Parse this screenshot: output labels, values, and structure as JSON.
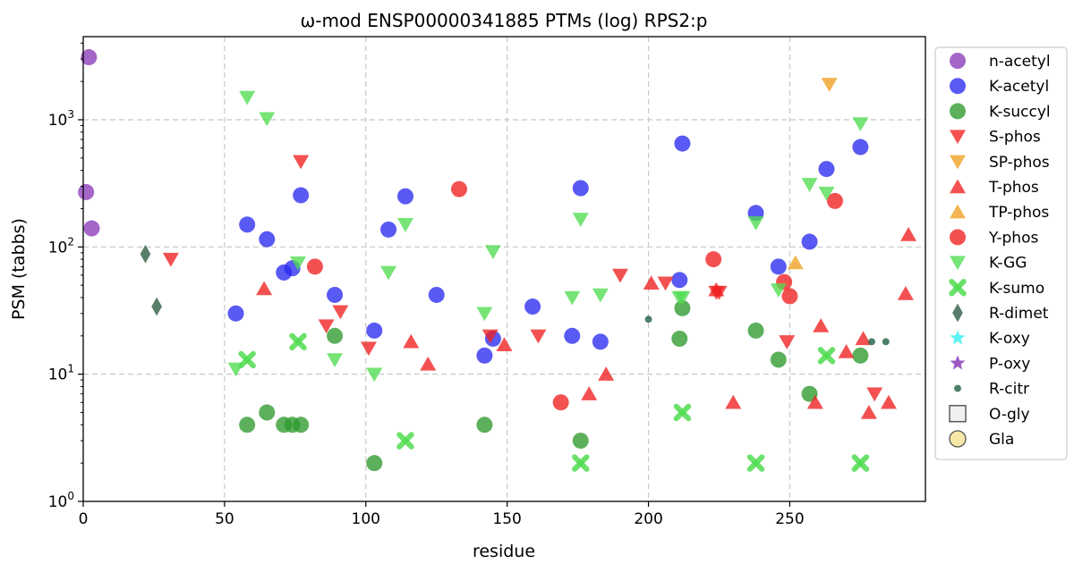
{
  "chart_data": {
    "type": "scatter",
    "title": "ω-mod ENSP00000341885 PTMs (log) RPS2:p",
    "xlabel": "residue",
    "ylabel": "PSM (tabbs)",
    "xlim": [
      0,
      298
    ],
    "ylim": [
      1,
      4500
    ],
    "yscale": "log",
    "grid": true,
    "legend_position": "outside-right",
    "x_ticks": [
      {
        "value": 0,
        "label": "0"
      },
      {
        "value": 50,
        "label": "50"
      },
      {
        "value": 100,
        "label": "100"
      },
      {
        "value": 150,
        "label": "150"
      },
      {
        "value": 200,
        "label": "200"
      },
      {
        "value": 250,
        "label": "250"
      }
    ],
    "y_ticks": [
      {
        "value": 1,
        "base": "10",
        "exp": "0"
      },
      {
        "value": 10,
        "base": "10",
        "exp": "1"
      },
      {
        "value": 100,
        "base": "10",
        "exp": "2"
      },
      {
        "value": 1000,
        "base": "10",
        "exp": "3"
      }
    ],
    "series": [
      {
        "name": "n-acetyl",
        "marker": "circle",
        "color": "#8a3bb8",
        "points": [
          [
            2,
            3100
          ],
          [
            1,
            270
          ],
          [
            3,
            140
          ]
        ]
      },
      {
        "name": "K-acetyl",
        "marker": "circle",
        "color": "#2a2af0",
        "points": [
          [
            54,
            30
          ],
          [
            58,
            150
          ],
          [
            65,
            115
          ],
          [
            71,
            63
          ],
          [
            74,
            68
          ],
          [
            77,
            255
          ],
          [
            89,
            42
          ],
          [
            103,
            22
          ],
          [
            108,
            137
          ],
          [
            114,
            250
          ],
          [
            125,
            42
          ],
          [
            142,
            14
          ],
          [
            145,
            19
          ],
          [
            159,
            34
          ],
          [
            173,
            20
          ],
          [
            176,
            290
          ],
          [
            183,
            18
          ],
          [
            211,
            55
          ],
          [
            212,
            650
          ],
          [
            238,
            185
          ],
          [
            246,
            70
          ],
          [
            257,
            110
          ],
          [
            263,
            410
          ],
          [
            275,
            610
          ]
        ]
      },
      {
        "name": "K-succyl",
        "marker": "circle",
        "color": "#2e9a2e",
        "points": [
          [
            58,
            4
          ],
          [
            65,
            5
          ],
          [
            71,
            4
          ],
          [
            74,
            4
          ],
          [
            77,
            4
          ],
          [
            89,
            20
          ],
          [
            103,
            2
          ],
          [
            142,
            4
          ],
          [
            176,
            3
          ],
          [
            211,
            19
          ],
          [
            212,
            33
          ],
          [
            238,
            22
          ],
          [
            246,
            13
          ],
          [
            257,
            7
          ],
          [
            275,
            14
          ]
        ]
      },
      {
        "name": "S-phos",
        "marker": "triangle-down",
        "color": "#f02020",
        "points": [
          [
            31,
            80
          ],
          [
            77,
            470
          ],
          [
            86,
            24
          ],
          [
            91,
            31
          ],
          [
            101,
            16
          ],
          [
            144,
            20
          ],
          [
            161,
            20
          ],
          [
            190,
            60
          ],
          [
            206,
            52
          ],
          [
            224,
            44
          ],
          [
            225,
            44
          ],
          [
            249,
            18
          ],
          [
            280,
            7
          ]
        ]
      },
      {
        "name": "SP-phos",
        "marker": "triangle-down",
        "color": "#f0a020",
        "points": [
          [
            264,
            1900
          ]
        ]
      },
      {
        "name": "T-phos",
        "marker": "triangle-up",
        "color": "#f02020",
        "points": [
          [
            64,
            47
          ],
          [
            116,
            18
          ],
          [
            122,
            12
          ],
          [
            149,
            17
          ],
          [
            179,
            7
          ],
          [
            185,
            10
          ],
          [
            201,
            52
          ],
          [
            224,
            46
          ],
          [
            230,
            6
          ],
          [
            259,
            6
          ],
          [
            261,
            24
          ],
          [
            270,
            15
          ],
          [
            276,
            19
          ],
          [
            278,
            5
          ],
          [
            285,
            6
          ],
          [
            291,
            43
          ],
          [
            292,
            125
          ]
        ]
      },
      {
        "name": "TP-phos",
        "marker": "triangle-up",
        "color": "#f0a020",
        "points": [
          [
            252,
            75
          ]
        ]
      },
      {
        "name": "Y-phos",
        "marker": "circle",
        "color": "#f02020",
        "points": [
          [
            82,
            70
          ],
          [
            133,
            285
          ],
          [
            169,
            6
          ],
          [
            223,
            80
          ],
          [
            248,
            53
          ],
          [
            250,
            41
          ],
          [
            266,
            230
          ]
        ]
      },
      {
        "name": "K-GG",
        "marker": "triangle-down",
        "color": "#50dc50",
        "points": [
          [
            58,
            1500
          ],
          [
            65,
            1020
          ],
          [
            54,
            11
          ],
          [
            76,
            75
          ],
          [
            89,
            13
          ],
          [
            103,
            10
          ],
          [
            108,
            63
          ],
          [
            114,
            150
          ],
          [
            142,
            30
          ],
          [
            145,
            92
          ],
          [
            173,
            40
          ],
          [
            176,
            165
          ],
          [
            183,
            42
          ],
          [
            211,
            40
          ],
          [
            212,
            40
          ],
          [
            238,
            155
          ],
          [
            246,
            46
          ],
          [
            257,
            310
          ],
          [
            263,
            265
          ],
          [
            275,
            930
          ]
        ]
      },
      {
        "name": "K-sumo",
        "marker": "x",
        "color": "#50dc50",
        "points": [
          [
            58,
            13
          ],
          [
            76,
            18
          ],
          [
            114,
            3
          ],
          [
            176,
            2
          ],
          [
            212,
            5
          ],
          [
            238,
            2
          ],
          [
            263,
            14
          ],
          [
            275,
            2
          ]
        ]
      },
      {
        "name": "R-dimet",
        "marker": "diamond",
        "color": "#2e5e44",
        "points": [
          [
            22,
            88
          ],
          [
            26,
            34
          ]
        ]
      },
      {
        "name": "K-oxy",
        "marker": "star",
        "color": "#40f0f0",
        "points": []
      },
      {
        "name": "P-oxy",
        "marker": "star",
        "color": "#8a3bb8",
        "points": []
      },
      {
        "name": "R-citr",
        "marker": "small-circle",
        "color": "#2e6a4e",
        "points": [
          [
            200,
            27
          ],
          [
            279,
            18
          ],
          [
            284,
            18
          ]
        ]
      },
      {
        "name": "O-gly",
        "marker": "square",
        "color": "#f0f0f0",
        "points": []
      },
      {
        "name": "Gla",
        "marker": "circle-outline",
        "color": "#f8e8a8",
        "points": []
      }
    ]
  }
}
